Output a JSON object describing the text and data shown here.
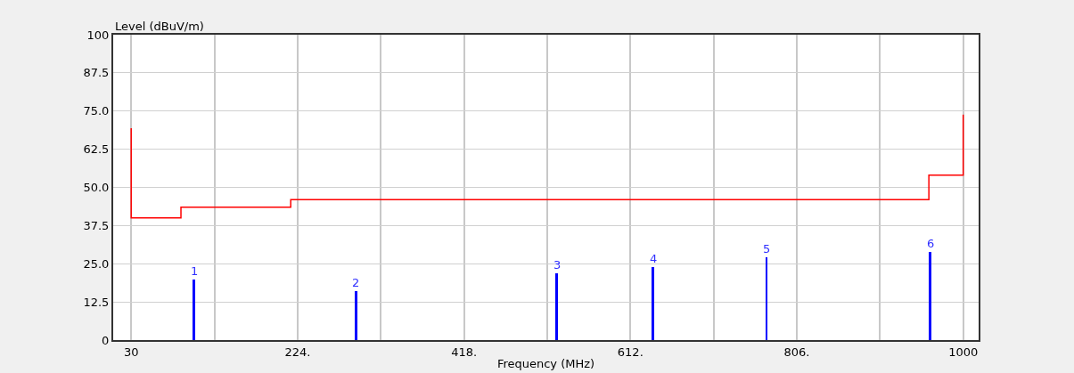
{
  "chart_data": {
    "type": "line",
    "xlabel": "Frequency (MHz)",
    "ylabel": "Level (dBuV/m)",
    "xlim": [
      9,
      1018
    ],
    "xticks": [
      30,
      {
        "value": 127,
        "label": null
      },
      {
        "value": 224,
        "label": "224."
      },
      {
        "value": 321,
        "label": null
      },
      {
        "value": 418,
        "label": "418."
      },
      {
        "value": 515,
        "label": null
      },
      {
        "value": 612,
        "label": "612."
      },
      {
        "value": 709,
        "label": null
      },
      {
        "value": 806,
        "label": "806."
      },
      {
        "value": 903,
        "label": null
      },
      1000
    ],
    "ylim": [
      0,
      100
    ],
    "yticks": [
      0,
      12.5,
      {
        "value": 25,
        "label": "25.0"
      },
      37.5,
      {
        "value": 50,
        "label": "50.0"
      },
      62.5,
      {
        "value": 75,
        "label": "75.0"
      },
      87.5,
      100
    ],
    "grid": true,
    "series": [
      {
        "color": "#ff0000",
        "x": [
          30,
          30,
          88,
          88,
          216,
          216,
          960,
          960,
          1000,
          1000
        ],
        "values": [
          69.4,
          40,
          40,
          43.5,
          43.5,
          46,
          46,
          54,
          54,
          73.8
        ]
      },
      {
        "type": "bar",
        "color": "#0000ff",
        "x": [
          103.4,
          292,
          526.4,
          638.2,
          770.7,
          961.8
        ],
        "values": [
          19.7,
          16,
          22,
          23.9,
          27,
          28.8
        ]
      }
    ],
    "annotations": [
      {
        "text": "1",
        "x": 103.4,
        "y": 19.7
      },
      {
        "text": "2",
        "x": 292,
        "y": 16
      },
      {
        "text": "3",
        "x": 526.4,
        "y": 22
      },
      {
        "text": "4",
        "x": 638.2,
        "y": 23.9
      },
      {
        "text": "5",
        "x": 770.7,
        "y": 27
      },
      {
        "text": "6",
        "x": 961.8,
        "y": 28.8
      }
    ]
  }
}
